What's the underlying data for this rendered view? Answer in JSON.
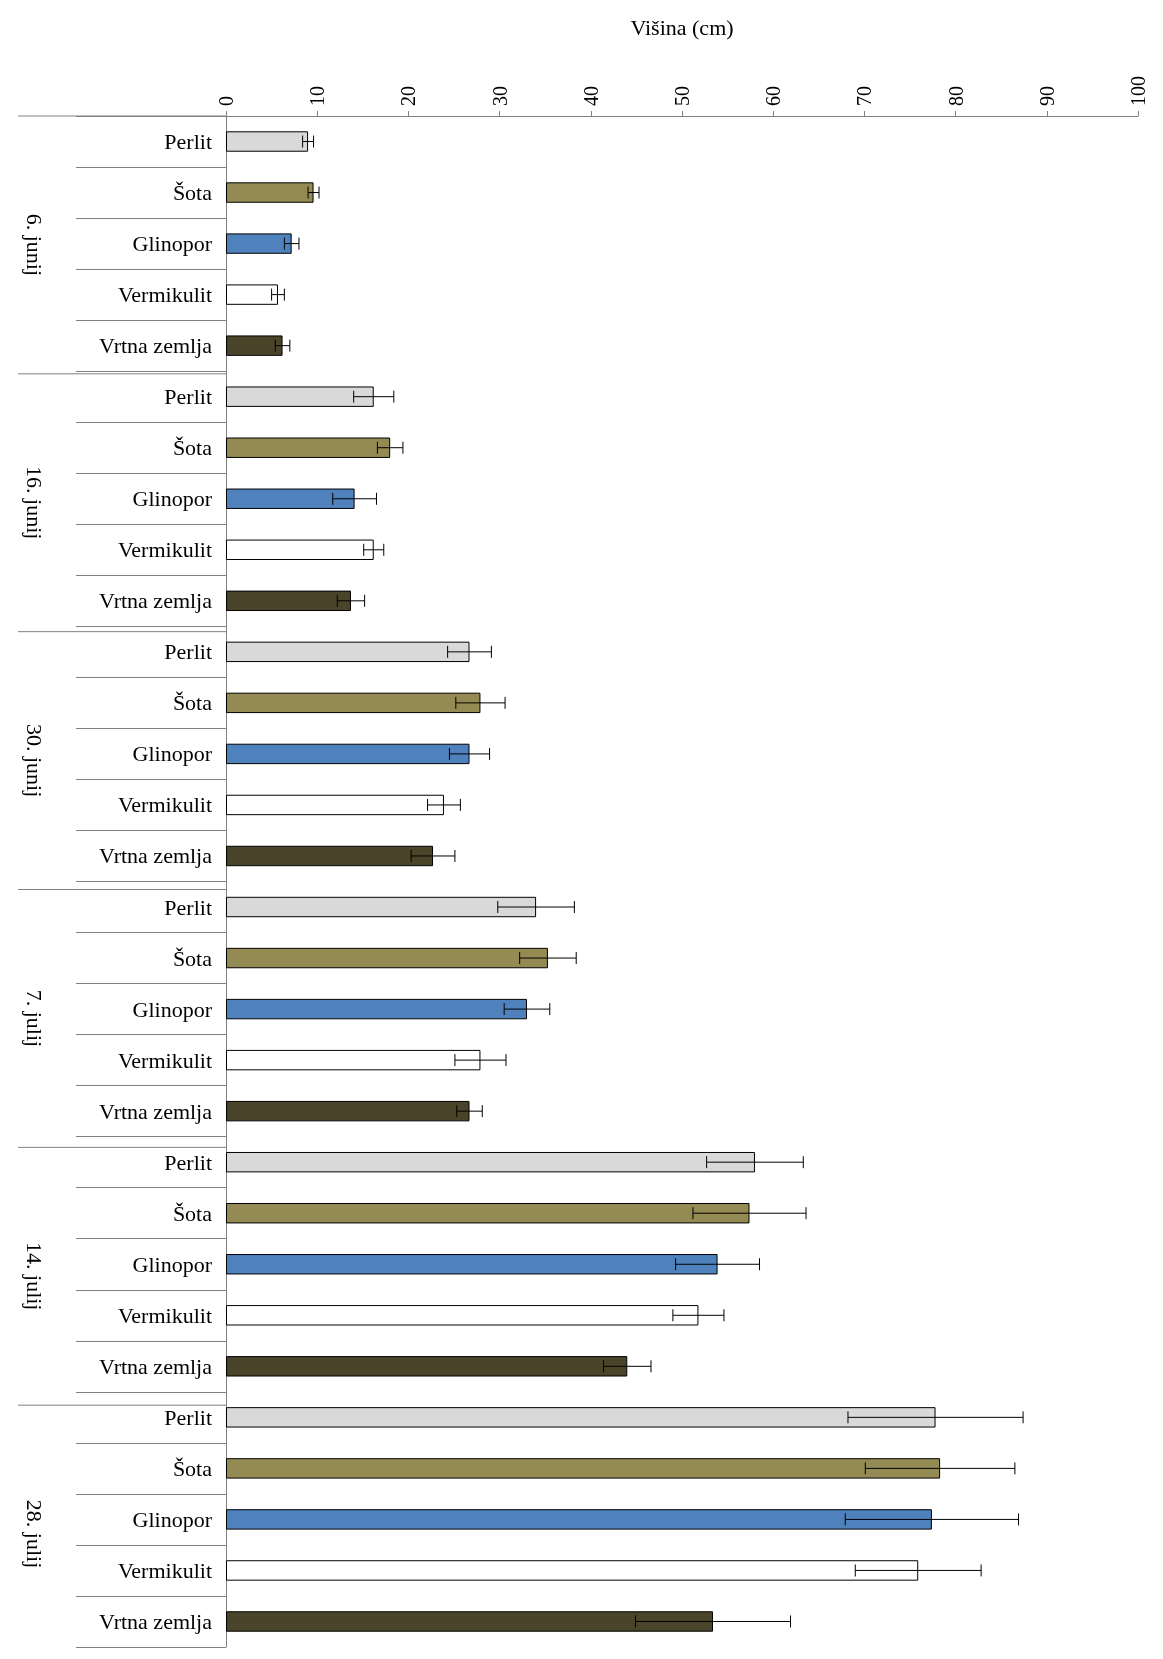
{
  "chart_data": {
    "type": "bar",
    "orientation": "horizontal",
    "xlabel": "Višina (cm)",
    "categories": [
      "Perlit",
      "Šota",
      "Glinopor",
      "Vermikulit",
      "Vrtna zemlja",
      "Perlit",
      "Šota",
      "Glinopor",
      "Vermikulit",
      "Vrtna zemlja",
      "Perlit",
      "Šota",
      "Glinopor",
      "Vermikulit",
      "Vrtna zemlja",
      "Perlit",
      "Šota",
      "Glinopor",
      "Vermikulit",
      "Vrtna zemlja",
      "Perlit",
      "Šota",
      "Glinopor",
      "Vermikulit",
      "Vrtna zemlja",
      "Perlit",
      "Šota",
      "Glinopor",
      "Vermikulit",
      "Vrtna zemlja"
    ],
    "values": [
      9.0,
      9.6,
      7.2,
      5.7,
      6.2,
      16.2,
      18.0,
      14.1,
      16.2,
      13.7,
      26.7,
      27.9,
      26.7,
      23.9,
      22.7,
      34.0,
      35.3,
      33.0,
      27.9,
      26.7,
      58.0,
      57.4,
      53.9,
      51.8,
      44.0,
      77.8,
      78.3,
      77.4,
      75.9,
      53.4
    ],
    "errors": [
      0.6,
      0.6,
      0.8,
      0.7,
      0.8,
      2.2,
      1.4,
      2.4,
      1.1,
      1.5,
      2.4,
      2.7,
      2.2,
      1.8,
      2.4,
      4.2,
      3.1,
      2.5,
      2.8,
      1.4,
      5.3,
      6.2,
      4.6,
      2.8,
      2.6,
      9.6,
      8.2,
      9.5,
      6.9,
      8.5
    ],
    "colors": [
      "#d9d9d9",
      "#948a54",
      "#4f81bd",
      "#ffffff",
      "#4a452a",
      "#d9d9d9",
      "#948a54",
      "#4f81bd",
      "#ffffff",
      "#4a452a",
      "#d9d9d9",
      "#948a54",
      "#4f81bd",
      "#ffffff",
      "#4a452a",
      "#d9d9d9",
      "#948a54",
      "#4f81bd",
      "#ffffff",
      "#4a452a",
      "#d9d9d9",
      "#948a54",
      "#4f81bd",
      "#ffffff",
      "#4a452a",
      "#d9d9d9",
      "#948a54",
      "#4f81bd",
      "#ffffff",
      "#4a452a"
    ],
    "annotations": [
      "6. junij",
      "16. junij",
      "30. junij",
      "7. julij",
      "14. julij",
      "28. julij"
    ],
    "xlim": [
      0,
      100
    ],
    "xticks": [
      0,
      10,
      20,
      30,
      40,
      50,
      60,
      70,
      80,
      90,
      100
    ],
    "grid": false
  }
}
